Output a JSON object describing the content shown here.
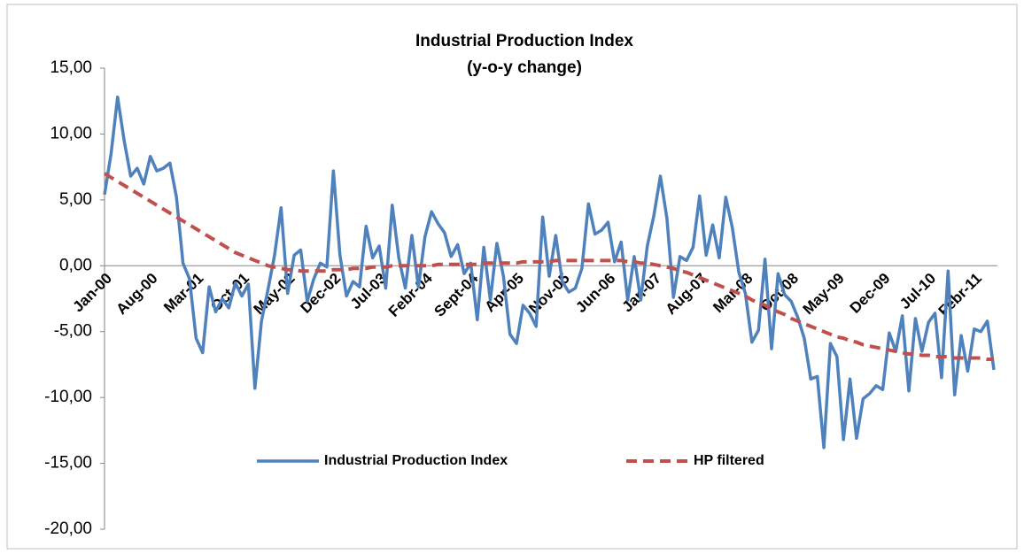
{
  "chart_data": {
    "type": "line",
    "title": "Industrial Production Index",
    "subtitle": "(y-o-y change)",
    "categories": [
      "Jan-00",
      null,
      null,
      null,
      null,
      null,
      null,
      "Aug-00",
      null,
      null,
      null,
      null,
      null,
      null,
      "Mar-01",
      null,
      null,
      null,
      null,
      null,
      null,
      "Oct-01",
      null,
      null,
      null,
      null,
      null,
      null,
      "May-02",
      null,
      null,
      null,
      null,
      null,
      null,
      "Dec-02",
      null,
      null,
      null,
      null,
      null,
      null,
      "Jul-03",
      null,
      null,
      null,
      null,
      null,
      null,
      "Febr-04",
      null,
      null,
      null,
      null,
      null,
      null,
      "Sept-04",
      null,
      null,
      null,
      null,
      null,
      null,
      "Apr-05",
      null,
      null,
      null,
      null,
      null,
      null,
      "Nov-05",
      null,
      null,
      null,
      null,
      null,
      null,
      "Jun-06",
      null,
      null,
      null,
      null,
      null,
      null,
      "Jan-07",
      null,
      null,
      null,
      null,
      null,
      null,
      "Aug-07",
      null,
      null,
      null,
      null,
      null,
      null,
      "Mar-08",
      null,
      null,
      null,
      null,
      null,
      null,
      "Oct-08",
      null,
      null,
      null,
      null,
      null,
      null,
      "May-09",
      null,
      null,
      null,
      null,
      null,
      null,
      "Dec-09",
      null,
      null,
      null,
      null,
      null,
      null,
      "Jul-10",
      null,
      null,
      null,
      null,
      null,
      null,
      "Febr-11",
      null,
      null,
      null
    ],
    "series": [
      {
        "name": "Industrial Production Index",
        "color": "#4f81bd",
        "dash": false,
        "values": [
          5.4,
          8.5,
          12.8,
          9.5,
          6.8,
          7.4,
          6.2,
          8.3,
          7.2,
          7.4,
          7.8,
          5.2,
          0.2,
          -1.0,
          -5.5,
          -6.6,
          -1.6,
          -3.5,
          -2.5,
          -3.2,
          -1.3,
          -2.3,
          -1.4,
          -9.3,
          -4.2,
          -1.8,
          0.8,
          4.4,
          -2.1,
          0.8,
          1.2,
          -2.7,
          -1.0,
          0.2,
          -0.1,
          7.2,
          0.8,
          -2.3,
          -1.2,
          -1.6,
          3.0,
          0.6,
          1.5,
          -1.7,
          4.6,
          0.6,
          -1.7,
          2.3,
          -1.6,
          2.2,
          4.1,
          3.2,
          2.5,
          0.7,
          1.6,
          -0.6,
          0.2,
          -4.1,
          1.4,
          -2.6,
          1.7,
          -0.8,
          -5.2,
          -5.9,
          -3.0,
          -3.6,
          -4.6,
          3.7,
          -0.8,
          2.3,
          -1.2,
          -2.0,
          -1.7,
          -0.2,
          4.7,
          2.4,
          2.7,
          3.3,
          0.3,
          1.8,
          -2.6,
          0.7,
          -2.6,
          1.5,
          3.8,
          6.8,
          3.6,
          -2.4,
          0.7,
          0.4,
          1.4,
          5.3,
          0.8,
          3.1,
          0.6,
          5.2,
          2.9,
          -0.5,
          -2.1,
          -5.8,
          -4.9,
          0.5,
          -6.3,
          -0.6,
          -2.2,
          -2.7,
          -3.9,
          -5.5,
          -8.6,
          -8.4,
          -13.8,
          -5.9,
          -6.9,
          -13.2,
          -8.6,
          -13.1,
          -10.1,
          -9.7,
          -9.1,
          -9.4,
          -5.1,
          -6.5,
          -3.8,
          -9.5,
          -4.0,
          -6.5,
          -4.3,
          -3.6,
          -8.5,
          -0.4,
          -9.8,
          -5.3,
          -8.0,
          -4.8,
          -5.0,
          -4.2,
          -7.9
        ]
      },
      {
        "name": "HP filtered",
        "color": "#c0504d",
        "dash": true,
        "values": [
          7.0,
          6.7,
          6.4,
          6.1,
          5.8,
          5.5,
          5.2,
          4.9,
          4.6,
          4.3,
          4.0,
          3.7,
          3.4,
          3.1,
          2.8,
          2.5,
          2.2,
          1.9,
          1.6,
          1.3,
          1.0,
          0.8,
          0.6,
          0.4,
          0.2,
          0.0,
          -0.1,
          -0.2,
          -0.3,
          -0.3,
          -0.4,
          -0.4,
          -0.4,
          -0.4,
          -0.4,
          -0.3,
          -0.3,
          -0.3,
          -0.2,
          -0.2,
          -0.2,
          -0.1,
          -0.1,
          -0.1,
          0.0,
          0.0,
          0.0,
          0.0,
          0.0,
          0.0,
          0.0,
          0.1,
          0.1,
          0.1,
          0.1,
          0.1,
          0.1,
          0.1,
          0.2,
          0.2,
          0.2,
          0.2,
          0.2,
          0.2,
          0.3,
          0.3,
          0.3,
          0.3,
          0.3,
          0.4,
          0.4,
          0.4,
          0.4,
          0.4,
          0.4,
          0.4,
          0.4,
          0.4,
          0.4,
          0.4,
          0.3,
          0.3,
          0.2,
          0.2,
          0.1,
          0.0,
          -0.1,
          -0.2,
          -0.4,
          -0.5,
          -0.7,
          -0.9,
          -1.1,
          -1.3,
          -1.5,
          -1.7,
          -1.9,
          -2.1,
          -2.3,
          -2.6,
          -2.8,
          -3.0,
          -3.3,
          -3.5,
          -3.7,
          -4.0,
          -4.2,
          -4.4,
          -4.6,
          -4.8,
          -5.0,
          -5.2,
          -5.4,
          -5.5,
          -5.7,
          -5.8,
          -6.0,
          -6.1,
          -6.2,
          -6.3,
          -6.4,
          -6.5,
          -6.6,
          -6.7,
          -6.7,
          -6.8,
          -6.8,
          -6.9,
          -6.9,
          -6.9,
          -7.0,
          -7.0,
          -7.0,
          -7.0,
          -7.0,
          -7.1,
          -7.1
        ]
      }
    ],
    "ylim": [
      -20,
      15
    ],
    "yticks": [
      {
        "value": -20,
        "label": "-20,00"
      },
      {
        "value": -15,
        "label": "-15,00"
      },
      {
        "value": -10,
        "label": "-10,00"
      },
      {
        "value": -5,
        "label": "-5,00"
      },
      {
        "value": 0,
        "label": "0,00"
      },
      {
        "value": 5,
        "label": "5,00"
      },
      {
        "value": 10,
        "label": "10,00"
      },
      {
        "value": 15,
        "label": "15,00"
      }
    ],
    "grid": false,
    "legend": "bottom"
  }
}
